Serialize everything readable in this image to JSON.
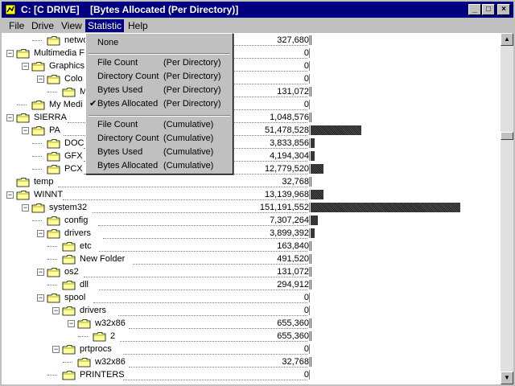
{
  "window": {
    "title": "C: [C DRIVE]    [Bytes Allocated (Per Directory)]",
    "min_glyph": "_",
    "max_glyph": "□",
    "close_glyph": "×"
  },
  "menubar": {
    "items": [
      {
        "label": "File"
      },
      {
        "label": "Drive"
      },
      {
        "label": "View"
      },
      {
        "label": "Statistic"
      },
      {
        "label": "Help"
      }
    ]
  },
  "statistic_menu": {
    "none": "None",
    "per_directory": [
      {
        "label": "File Count",
        "scope": "(Per Directory)",
        "checked": false
      },
      {
        "label": "Directory Count",
        "scope": "(Per Directory)",
        "checked": false
      },
      {
        "label": "Bytes Used",
        "scope": "(Per Directory)",
        "checked": false
      },
      {
        "label": "Bytes Allocated",
        "scope": "(Per Directory)",
        "checked": true
      }
    ],
    "cumulative": [
      {
        "label": "File Count",
        "scope": "(Cumulative)"
      },
      {
        "label": "Directory Count",
        "scope": "(Cumulative)"
      },
      {
        "label": "Bytes Used",
        "scope": "(Cumulative)"
      },
      {
        "label": "Bytes Allocated",
        "scope": "(Cumulative)"
      }
    ],
    "check_glyph": "✔"
  },
  "tree": {
    "max_value": 151191552,
    "rows": [
      {
        "name": "network",
        "level": 2,
        "value": "327,680",
        "num": 327680
      },
      {
        "name": "Multimedia F",
        "level": 0,
        "value": "0",
        "num": 0,
        "expander": "−"
      },
      {
        "name": "Graphics",
        "level": 1,
        "value": "0",
        "num": 0,
        "expander": "−"
      },
      {
        "name": "Colo",
        "level": 2,
        "value": "0",
        "num": 0,
        "expander": "−"
      },
      {
        "name": "M",
        "level": 3,
        "value": "131,072",
        "num": 131072
      },
      {
        "name": "My Medi",
        "level": 1,
        "value": "0",
        "num": 0
      },
      {
        "name": "SIERRA",
        "level": 0,
        "value": "1,048,576",
        "num": 1048576,
        "expander": "−"
      },
      {
        "name": "PA",
        "level": 1,
        "value": "51,478,528",
        "num": 51478528,
        "expander": "−"
      },
      {
        "name": "DOC",
        "level": 2,
        "value": "3,833,856",
        "num": 3833856
      },
      {
        "name": "GFX",
        "level": 2,
        "value": "4,194,304",
        "num": 4194304
      },
      {
        "name": "PCX",
        "level": 2,
        "value": "12,779,520",
        "num": 12779520
      },
      {
        "name": "temp",
        "level": 0,
        "value": "32,768",
        "num": 32768
      },
      {
        "name": "WINNT",
        "level": 0,
        "value": "13,139,968",
        "num": 13139968,
        "expander": "−"
      },
      {
        "name": "system32",
        "level": 1,
        "value": "151,191,552",
        "num": 151191552,
        "expander": "−"
      },
      {
        "name": "config",
        "level": 2,
        "value": "7,307,264",
        "num": 7307264
      },
      {
        "name": "drivers",
        "level": 2,
        "value": "3,899,392",
        "num": 3899392,
        "expander": "−"
      },
      {
        "name": "etc",
        "level": 3,
        "value": "163,840",
        "num": 163840
      },
      {
        "name": "New Folder",
        "level": 3,
        "value": "491,520",
        "num": 491520
      },
      {
        "name": "os2",
        "level": 2,
        "value": "131,072",
        "num": 131072,
        "expander": "−"
      },
      {
        "name": "dll",
        "level": 3,
        "value": "294,912",
        "num": 294912
      },
      {
        "name": "spool",
        "level": 2,
        "value": "0",
        "num": 0,
        "expander": "−"
      },
      {
        "name": "drivers",
        "level": 3,
        "value": "0",
        "num": 0,
        "expander": "−"
      },
      {
        "name": "w32x86",
        "level": 4,
        "value": "655,360",
        "num": 655360,
        "expander": "−"
      },
      {
        "name": "2",
        "level": 5,
        "value": "655,360",
        "num": 655360
      },
      {
        "name": "prtprocs",
        "level": 3,
        "value": "0",
        "num": 0,
        "expander": "−"
      },
      {
        "name": "w32x86",
        "level": 4,
        "value": "32,768",
        "num": 32768
      },
      {
        "name": "PRINTERS",
        "level": 3,
        "value": "0",
        "num": 0
      }
    ]
  },
  "scrollbar": {
    "up_glyph": "▲",
    "down_glyph": "▼",
    "position_fraction": 0.27
  },
  "colors": {
    "title_bg": "#000080",
    "menu_highlight": "#000080",
    "folder": "#ffff99",
    "window": "#c0c0c0"
  }
}
